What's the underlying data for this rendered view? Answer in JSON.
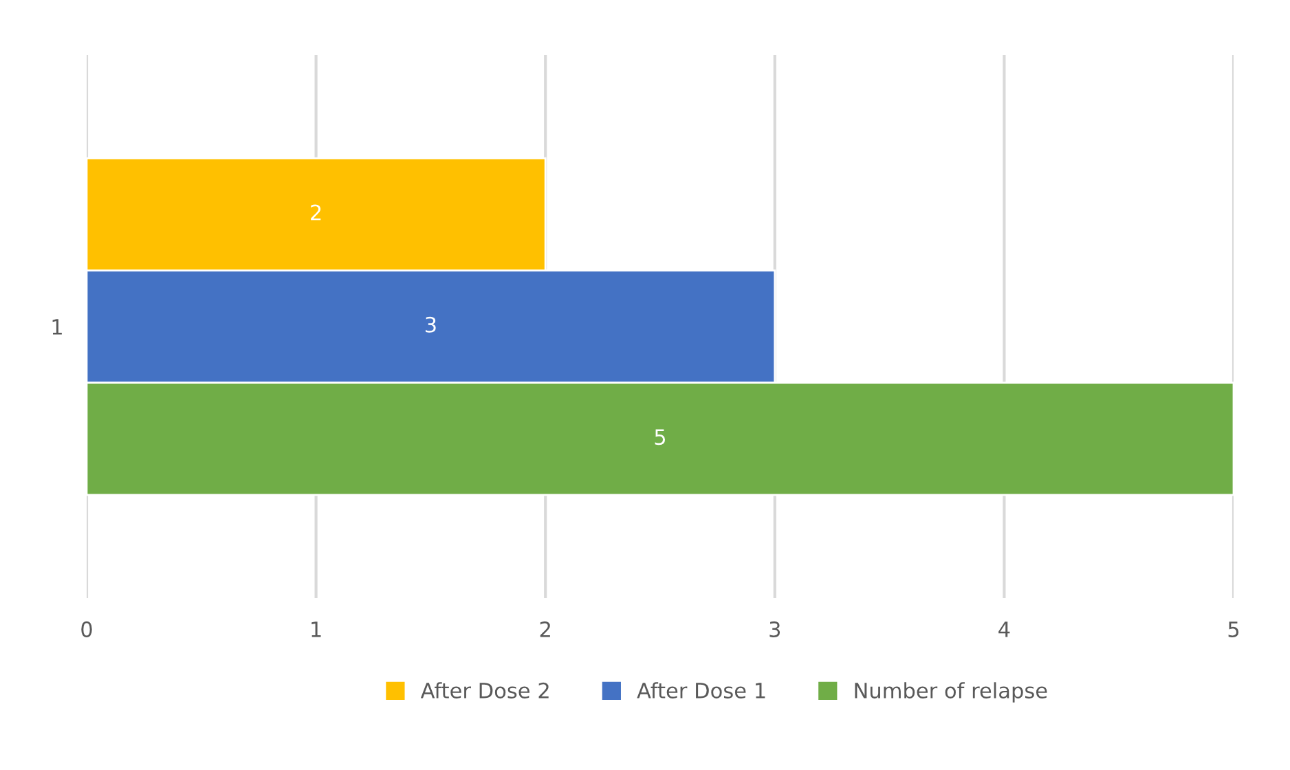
{
  "chart_data": {
    "type": "bar",
    "orientation": "horizontal",
    "categories": [
      "1"
    ],
    "series": [
      {
        "name": "After Dose 2",
        "color": "#ffc000",
        "values": [
          2
        ]
      },
      {
        "name": "After Dose 1",
        "color": "#4472c4",
        "values": [
          3
        ]
      },
      {
        "name": "Number of relapse",
        "color": "#70ad47",
        "values": [
          5
        ]
      }
    ],
    "xlim": [
      0,
      5
    ],
    "xticks": [
      0,
      1,
      2,
      3,
      4,
      5
    ],
    "grid": "x",
    "legend": "bottom",
    "data_labels": true
  }
}
